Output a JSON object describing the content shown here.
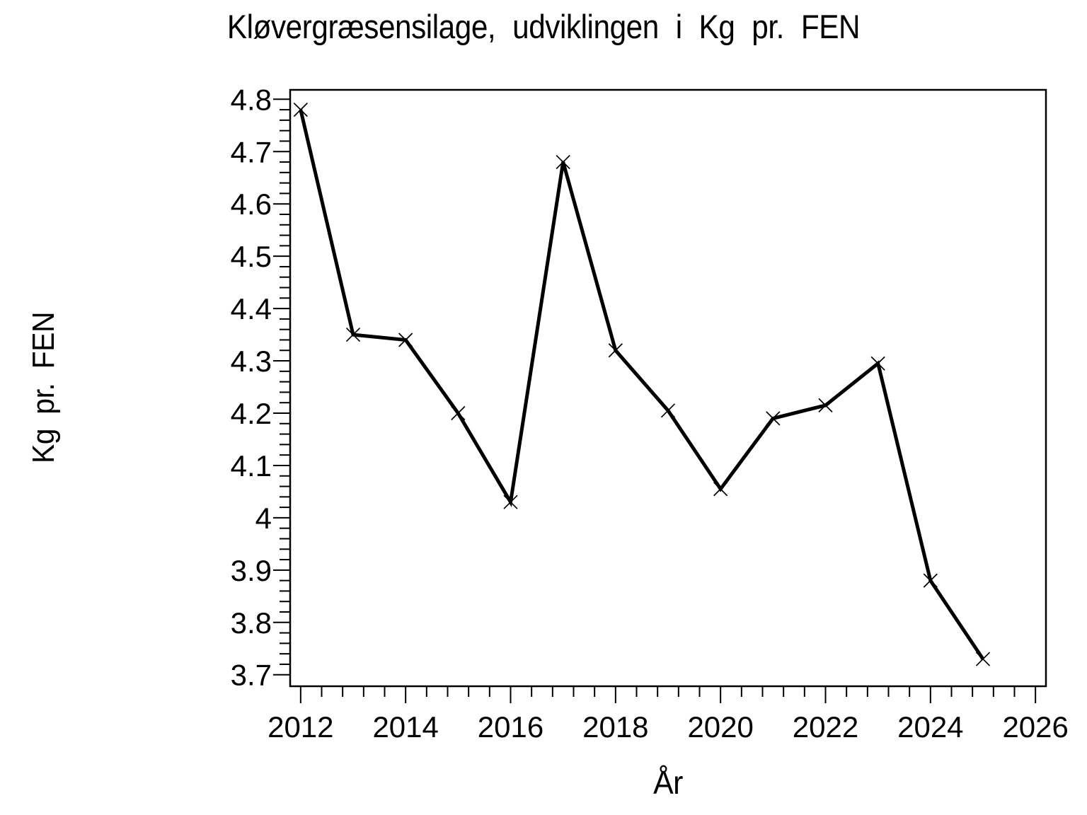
{
  "page": {
    "background": "#ffffff",
    "foreground": "#000000"
  },
  "chart_data": {
    "type": "line",
    "title": "Kløvergræsensilage,  udviklingen  i  Kg  pr.  FEN",
    "xlabel": "År",
    "ylabel": "Kg pr. FEN",
    "x": [
      2012,
      2013,
      2014,
      2015,
      2016,
      2017,
      2018,
      2019,
      2020,
      2021,
      2022,
      2023,
      2024,
      2025
    ],
    "y": [
      4.78,
      4.35,
      4.34,
      4.2,
      4.03,
      4.68,
      4.32,
      4.205,
      4.055,
      4.19,
      4.215,
      4.295,
      3.88,
      3.73
    ],
    "series": [
      {
        "name": "Kg pr. FEN",
        "values": [
          4.78,
          4.35,
          4.34,
          4.2,
          4.03,
          4.68,
          4.32,
          4.205,
          4.055,
          4.19,
          4.215,
          4.295,
          3.88,
          3.73
        ]
      }
    ],
    "marker": "x",
    "line_color": "#000000",
    "background": "#ffffff",
    "xlim": [
      2011.8,
      2026.2
    ],
    "ylim": [
      3.678,
      4.818
    ],
    "xticks": [
      2012,
      2014,
      2016,
      2018,
      2020,
      2022,
      2024,
      2026
    ],
    "yticks": [
      3.7,
      3.8,
      3.9,
      4.0,
      4.1,
      4.2,
      4.3,
      4.4,
      4.5,
      4.6,
      4.7,
      4.8
    ],
    "x_minor_step": 0.4,
    "y_minor_step": 0.02,
    "grid": false,
    "legend": "none",
    "frame": true
  }
}
